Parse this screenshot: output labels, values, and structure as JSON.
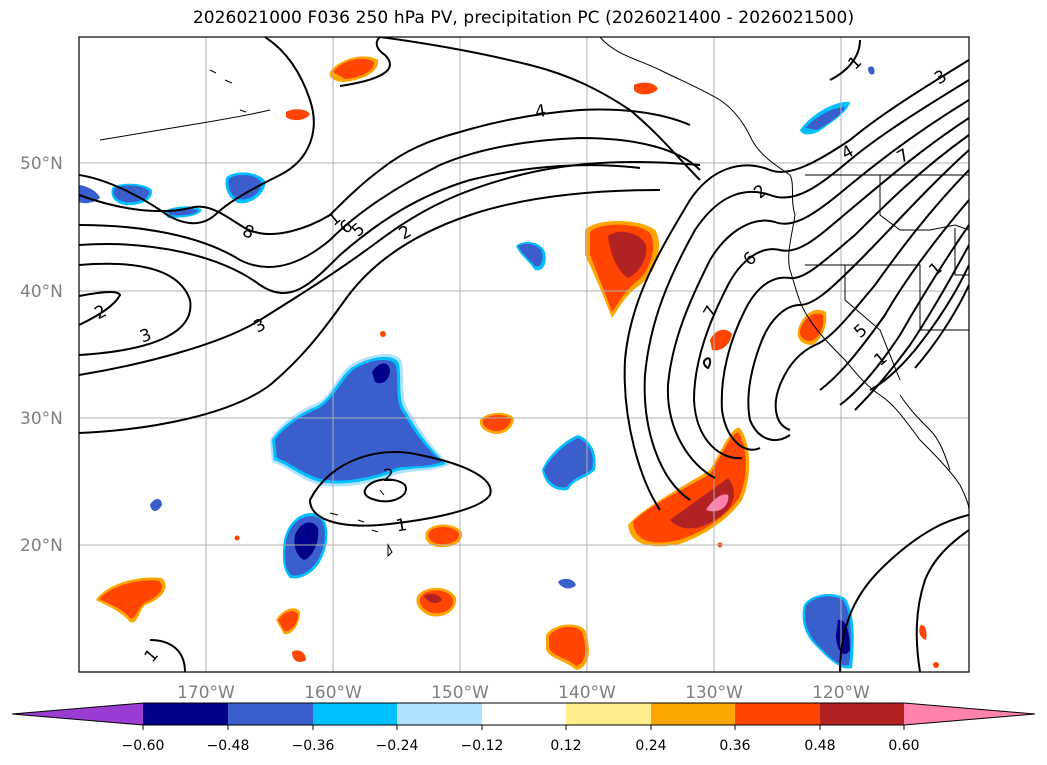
{
  "title": "2026021000 F036 250 hPa PV, precipitation PC (2026021400 - 2026021500)",
  "lat_labels": [
    "50°N",
    "40°N",
    "30°N",
    "20°N"
  ],
  "lon_labels": [
    "170°W",
    "160°W",
    "150°W",
    "140°W",
    "130°W",
    "120°W"
  ],
  "colorbar": {
    "ticks": [
      "−0.60",
      "−0.48",
      "−0.36",
      "−0.24",
      "−0.12",
      "0.12",
      "0.24",
      "0.36",
      "0.48",
      "0.60"
    ],
    "colors": [
      "#9a3bd1",
      "#00008b",
      "#3a5fcd",
      "#00bfff",
      "#b0e2ff",
      "#ffffff",
      "#ffec8b",
      "#ffa500",
      "#ff4500",
      "#b22222",
      "#ff82ab",
      "#ff82ab"
    ]
  },
  "contour_labels": [
    "8",
    "2",
    "3",
    "2",
    "3",
    "2",
    "1",
    "4",
    "1",
    "3",
    "4",
    "1",
    "2",
    "6",
    "7",
    "5",
    "1",
    "1",
    "2",
    "1",
    "1",
    "7",
    "6",
    "5"
  ],
  "colors": {
    "pos_low": "#ffec8b",
    "pos_mid": "#ffa500",
    "pos_high": "#ff4500",
    "pos_higher": "#b22222",
    "pos_max": "#ff82ab",
    "neg_low": "#b0e2ff",
    "neg_mid": "#00bfff",
    "neg_high": "#3a5fcd",
    "neg_higher": "#00008b"
  }
}
